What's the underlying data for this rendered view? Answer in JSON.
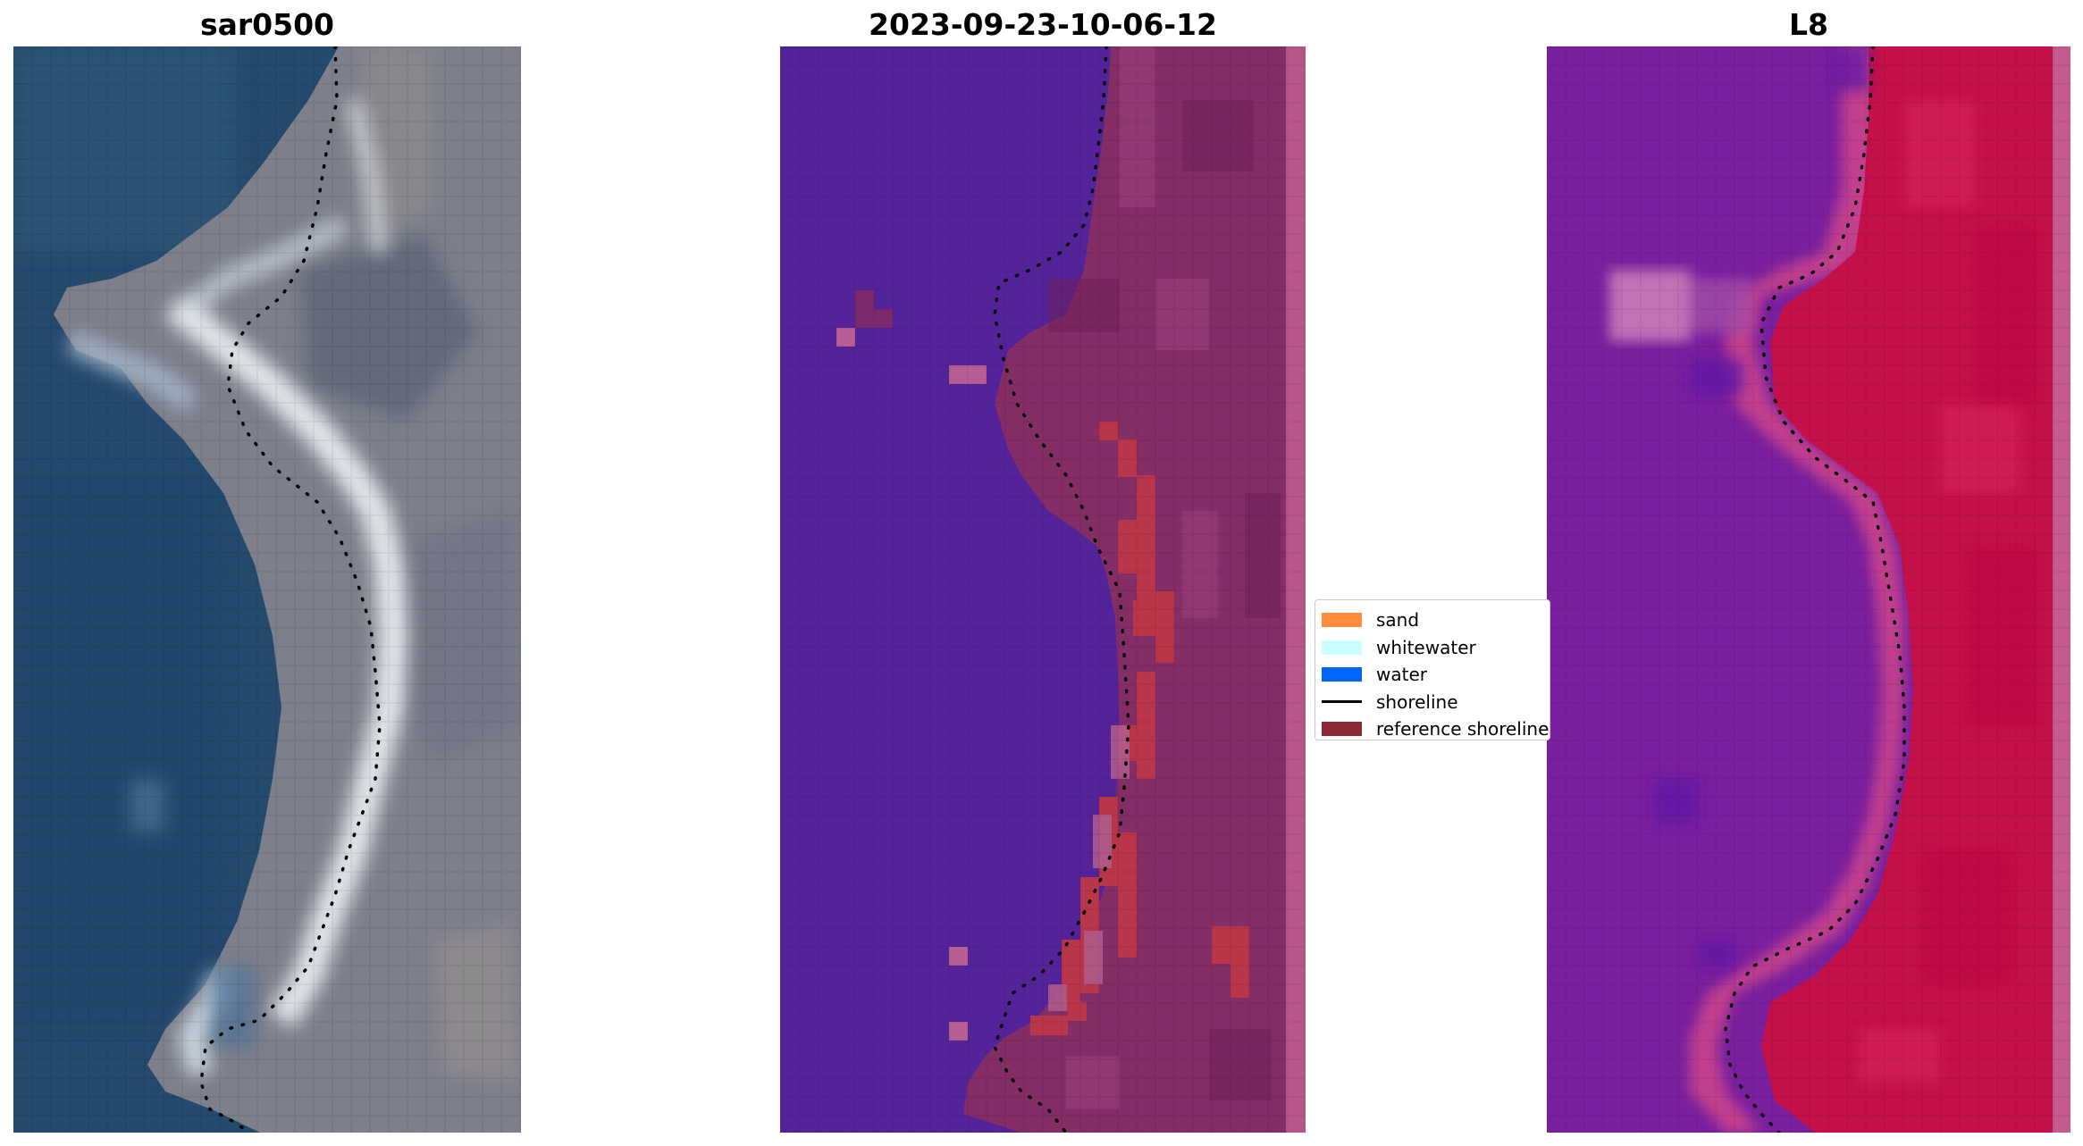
{
  "panels": {
    "left": {
      "title": "sar0500"
    },
    "middle": {
      "title": "2023-09-23-10-06-12"
    },
    "right": {
      "title": "L8"
    }
  },
  "legend": {
    "items": [
      {
        "label": "sand",
        "kind": "patch",
        "color": "#ff8c3c"
      },
      {
        "label": "whitewater",
        "kind": "patch",
        "color": "#c8ffff"
      },
      {
        "label": "water",
        "kind": "patch",
        "color": "#0064ff"
      },
      {
        "label": "shoreline",
        "kind": "line",
        "color": "#000000"
      },
      {
        "label": "reference shoreline",
        "kind": "patch",
        "color": "#8b2a35"
      }
    ]
  },
  "colors": {
    "left_sea": "#244a6e",
    "left_land": "#7d7f8b",
    "left_sand": "#e3e6ea",
    "middle_water": "#54239a",
    "middle_land": "#852d66",
    "middle_sand_class": "#b93549",
    "middle_edge_strip": "#b8568a",
    "right_water": "#7a1f9e",
    "right_land": "#c4114a",
    "right_transition": "#c2418e"
  }
}
